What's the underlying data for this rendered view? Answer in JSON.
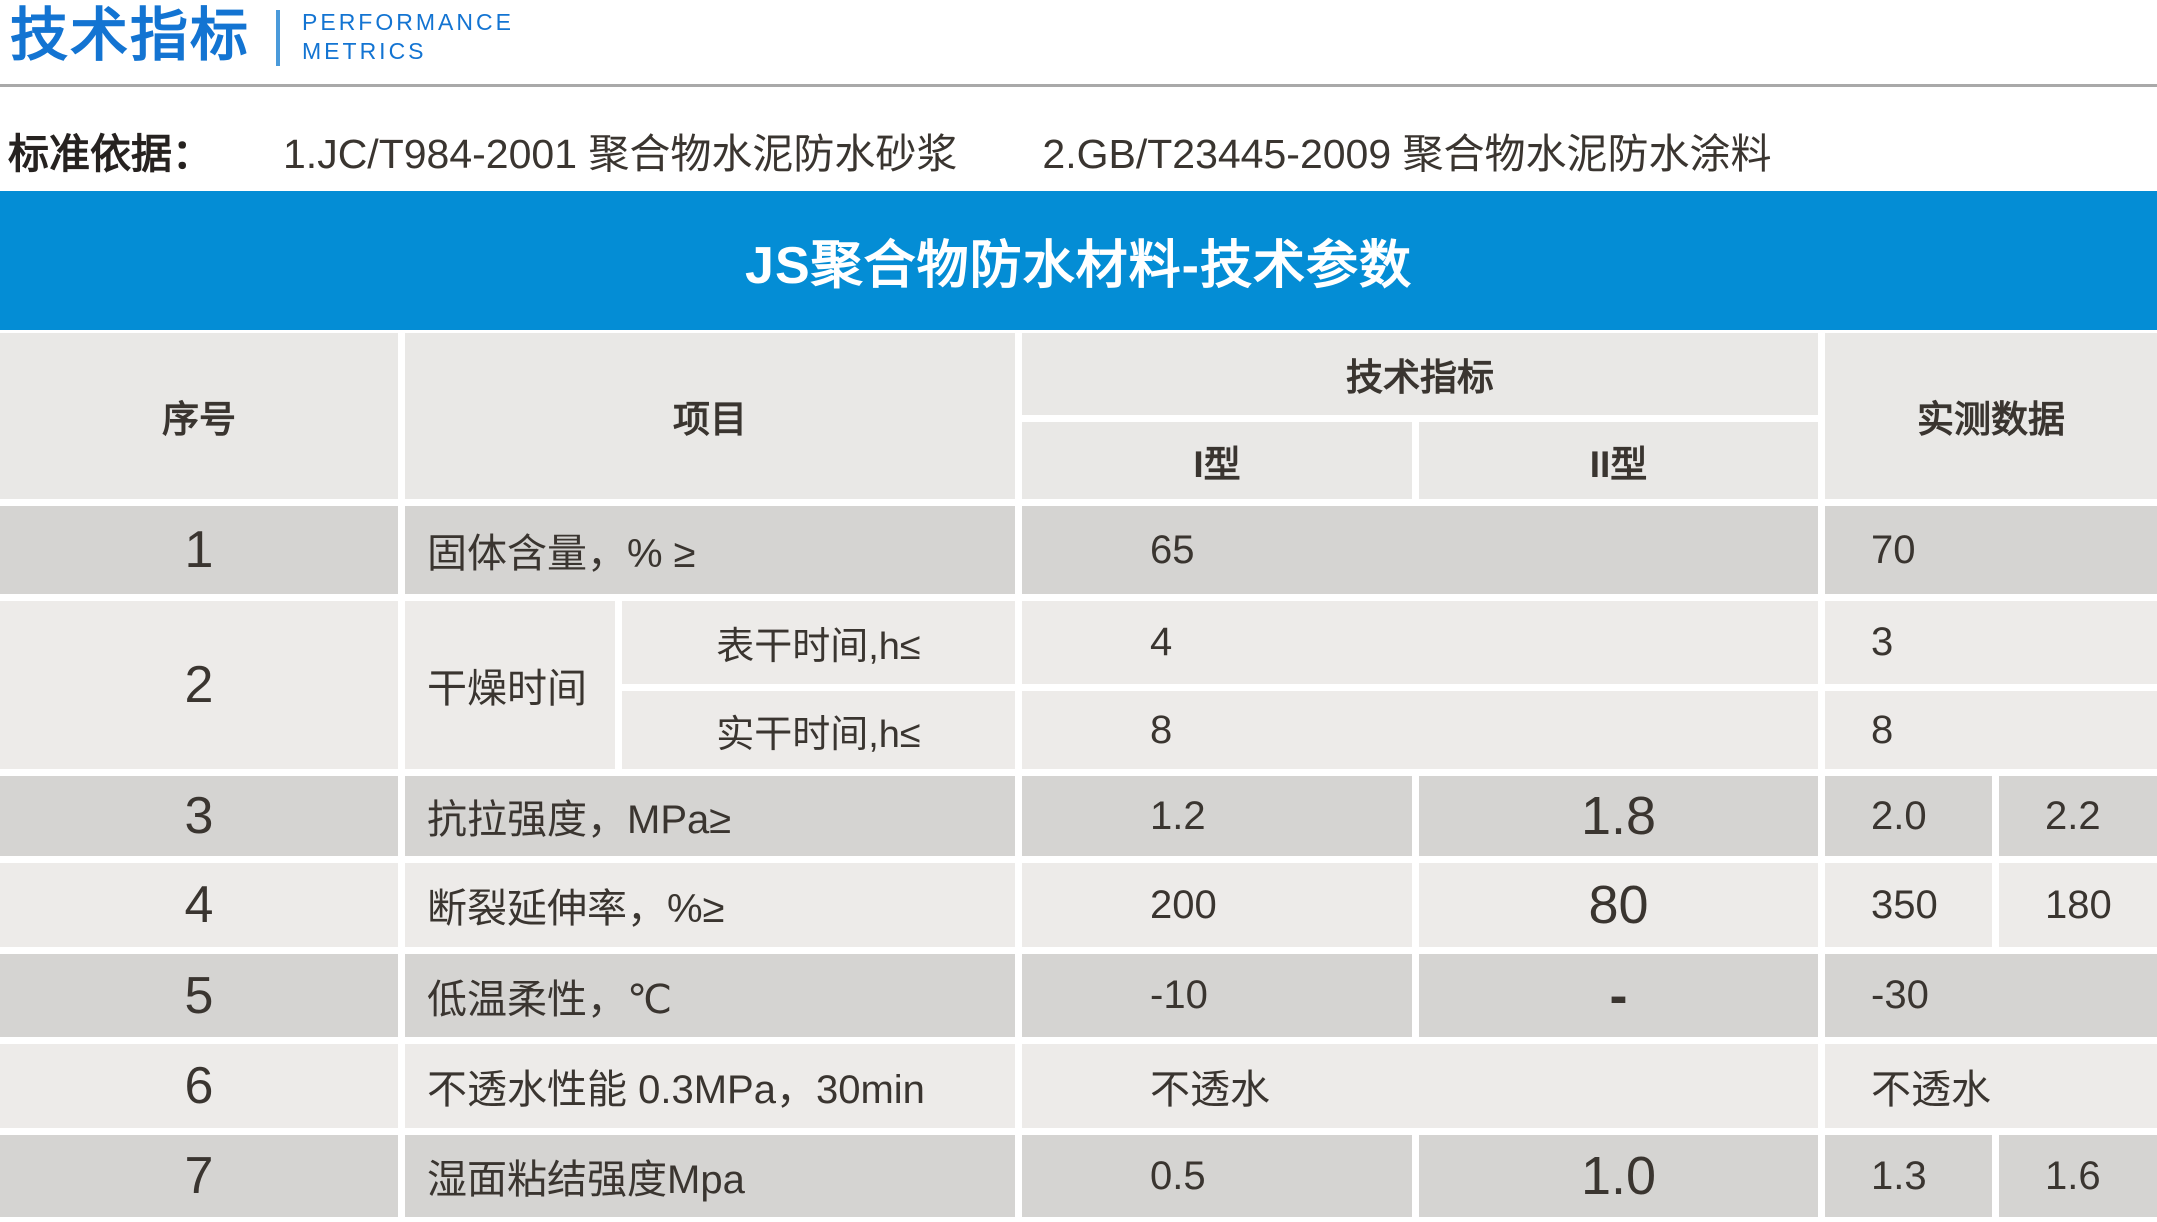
{
  "header": {
    "title": "技术指标",
    "subtitle_line1": "PERFORMANCE",
    "subtitle_line2": "METRICS"
  },
  "standards": {
    "label": "标准依据：",
    "items": [
      "1.JC/T984-2001 聚合物水泥防水砂浆",
      "2.GB/T23445-2009 聚合物水泥防水涂料"
    ]
  },
  "table": {
    "banner": "JS聚合物防水材料-技术参数",
    "headers": {
      "no": "序号",
      "item": "项目",
      "tech": "技术指标",
      "type1": "I型",
      "type2": "II型",
      "measured": "实测数据"
    },
    "rows": {
      "r1": {
        "no": "1",
        "item": "固体含量，% ≥",
        "tech": "65",
        "measured": "70"
      },
      "r2": {
        "no": "2",
        "item": "干燥时间",
        "sub1": {
          "label": "表干时间,h≤",
          "tech": "4",
          "measured": "3"
        },
        "sub2": {
          "label": "实干时间,h≤",
          "tech": "8",
          "measured": "8"
        }
      },
      "r3": {
        "no": "3",
        "item": "抗拉强度，MPa≥",
        "type1": "1.2",
        "type2": "1.8",
        "measured1": "2.0",
        "measured2": "2.2"
      },
      "r4": {
        "no": "4",
        "item": "断裂延伸率，%≥",
        "type1": "200",
        "type2": "80",
        "measured1": "350",
        "measured2": "180"
      },
      "r5": {
        "no": "5",
        "item": "低温柔性，℃",
        "type1": "-10",
        "type2": "-",
        "measured": "-30"
      },
      "r6": {
        "no": "6",
        "item": "不透水性能 0.3MPa，30min",
        "tech": "不透水",
        "measured": "不透水"
      },
      "r7": {
        "no": "7",
        "item": "湿面粘结强度Mpa",
        "type1": "0.5",
        "type2": "1.0",
        "measured1": "1.3",
        "measured2": "1.6"
      }
    }
  },
  "colors": {
    "title_blue": "#1374d2",
    "banner_blue": "#048dd5",
    "header_gray": "#e9e8e6",
    "row_dark": "#d5d4d2",
    "row_light": "#edebe9",
    "text_dark": "#3a3530",
    "rule_gray": "#a9a9a9"
  }
}
